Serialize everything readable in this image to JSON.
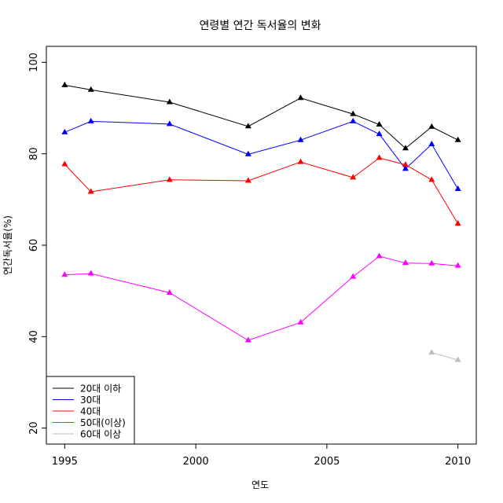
{
  "chart_data": {
    "type": "line",
    "title": "연령별 연간 독서율의 변화",
    "xlabel": "연도",
    "ylabel": "연간독서율(%)",
    "xlim": [
      1994.3,
      2010.7
    ],
    "ylim": [
      16.5,
      103.5
    ],
    "x_ticks": [
      1995,
      2000,
      2005,
      2010
    ],
    "y_ticks": [
      20,
      40,
      60,
      80,
      100
    ],
    "legend_position": "bottom-left",
    "grid": false,
    "series": [
      {
        "name": "20대 이하",
        "color": "#000000",
        "x": [
          1995,
          1996,
          1999,
          2002,
          2004,
          2006,
          2007,
          2008,
          2009,
          2010
        ],
        "y": [
          95.0,
          94.0,
          91.3,
          86.0,
          92.2,
          88.7,
          86.4,
          81.2,
          85.9,
          83.0
        ]
      },
      {
        "name": "30대",
        "color": "#0000ff",
        "x": [
          1995,
          1996,
          1999,
          2002,
          2004,
          2006,
          2007,
          2008,
          2009,
          2010
        ],
        "y": [
          84.7,
          87.1,
          86.5,
          79.9,
          83.0,
          87.1,
          84.3,
          76.7,
          82.1,
          72.3
        ]
      },
      {
        "name": "40대",
        "color": "#ff0000",
        "x": [
          1995,
          1996,
          1999,
          2002,
          2004,
          2006,
          2007,
          2008,
          2009,
          2010
        ],
        "y": [
          77.7,
          71.7,
          74.3,
          74.1,
          78.2,
          74.8,
          79.1,
          77.6,
          74.3,
          64.7
        ]
      },
      {
        "name": "50대(이상)",
        "color": "#ff00ff",
        "x": [
          1995,
          1996,
          1999,
          2002,
          2004,
          2006,
          2007,
          2008,
          2009,
          2010
        ],
        "y": [
          53.5,
          53.8,
          49.6,
          39.2,
          43.1,
          53.1,
          57.6,
          56.1,
          56.0,
          55.5
        ]
      },
      {
        "name": "60대 이상",
        "color": "#bebebe",
        "x": [
          2009,
          2010
        ],
        "y": [
          36.5,
          34.9
        ]
      }
    ]
  }
}
